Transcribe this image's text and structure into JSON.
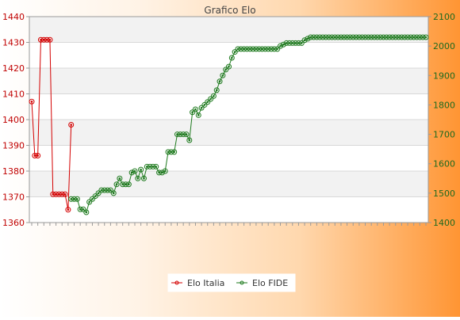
{
  "chart_data": {
    "type": "line",
    "title": "Grafico Elo",
    "xlabel": "",
    "y_left": {
      "min": 1360,
      "max": 1440,
      "ticks": [
        1360,
        1370,
        1380,
        1390,
        1400,
        1410,
        1420,
        1430,
        1440
      ]
    },
    "y_right": {
      "min": 1400,
      "max": 2100,
      "ticks": [
        1400,
        1500,
        1600,
        1700,
        1800,
        1900,
        2000,
        2100
      ]
    },
    "x_count": 131,
    "series": [
      {
        "name": "Elo Italia",
        "axis": "left",
        "color": "#d40000",
        "x": [
          0,
          1,
          2,
          3,
          4,
          5,
          6,
          7,
          8,
          9,
          10,
          11,
          12,
          13
        ],
        "values": [
          1407,
          1386,
          1386,
          1431,
          1431,
          1431,
          1431,
          1371,
          1371,
          1371,
          1371,
          1371,
          1365,
          1398
        ]
      },
      {
        "name": "Elo FIDE",
        "axis": "right",
        "color": "#1e7a1e",
        "x": [
          13,
          14,
          15,
          16,
          17,
          18,
          19,
          20,
          21,
          22,
          23,
          24,
          25,
          26,
          27,
          28,
          29,
          30,
          31,
          32,
          33,
          34,
          35,
          36,
          37,
          38,
          39,
          40,
          41,
          42,
          43,
          44,
          45,
          46,
          47,
          48,
          49,
          50,
          51,
          52,
          53,
          54,
          55,
          56,
          57,
          58,
          59,
          60,
          61,
          62,
          63,
          64,
          65,
          66,
          67,
          68,
          69,
          70,
          71,
          72,
          73,
          74,
          75,
          76,
          77,
          78,
          79,
          80,
          81,
          82,
          83,
          84,
          85,
          86,
          87,
          88,
          89,
          90,
          91,
          92,
          93,
          94,
          95,
          96,
          97,
          98,
          99,
          100,
          101,
          102,
          103,
          104,
          105,
          106,
          107,
          108,
          109,
          110,
          111,
          112,
          113,
          114,
          115,
          116,
          117,
          118,
          119,
          120,
          121,
          122,
          123,
          124,
          125,
          126,
          127,
          128,
          129,
          130
        ],
        "values": [
          1480,
          1480,
          1480,
          1445,
          1445,
          1435,
          1470,
          1480,
          1490,
          1500,
          1510,
          1510,
          1510,
          1510,
          1500,
          1530,
          1550,
          1530,
          1530,
          1530,
          1570,
          1575,
          1550,
          1580,
          1550,
          1590,
          1590,
          1590,
          1590,
          1570,
          1570,
          1575,
          1640,
          1640,
          1640,
          1700,
          1700,
          1700,
          1700,
          1680,
          1775,
          1785,
          1765,
          1790,
          1800,
          1810,
          1820,
          1830,
          1850,
          1880,
          1900,
          1920,
          1930,
          1960,
          1980,
          1990,
          1990,
          1990,
          1990,
          1990,
          1990,
          1990,
          1990,
          1990,
          1990,
          1990,
          1990,
          1990,
          1990,
          2000,
          2005,
          2010,
          2010,
          2010,
          2010,
          2010,
          2010,
          2020,
          2025,
          2030,
          2030,
          2030,
          2030,
          2030,
          2030,
          2030,
          2030,
          2030,
          2030,
          2030,
          2030,
          2030,
          2030,
          2030,
          2030,
          2030,
          2030,
          2030,
          2030,
          2030,
          2030,
          2030,
          2030,
          2030,
          2030,
          2030,
          2030,
          2030,
          2030,
          2030,
          2030,
          2030,
          2030,
          2030,
          2030,
          2030,
          2030,
          2030
        ]
      }
    ],
    "legend_position": "bottom-center",
    "grid": true
  }
}
